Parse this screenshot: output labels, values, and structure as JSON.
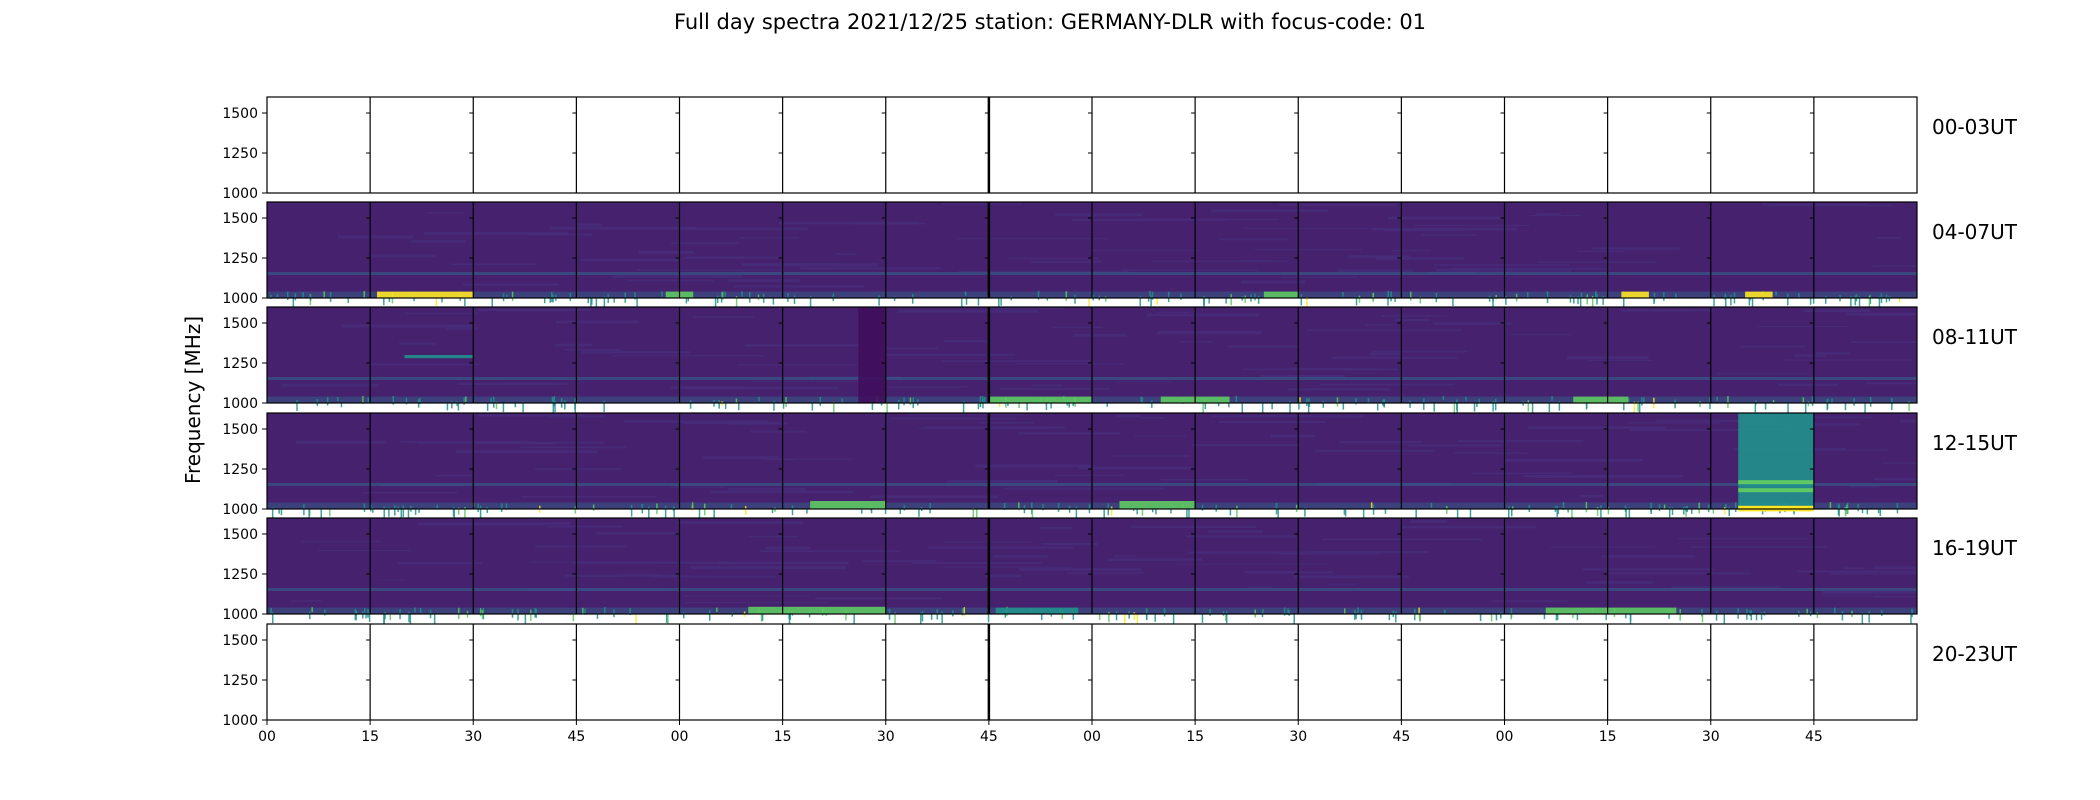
{
  "title": "Full day spectra 2021/12/25 station: GERMANY-DLR with focus-code: 01",
  "chart_data": {
    "type": "heatmap",
    "title": "Full day spectra 2021/12/25 station: GERMANY-DLR with focus-code: 01",
    "ylabel": "Frequency [MHz]",
    "xlabel": "",
    "ylim": [
      1000,
      1600
    ],
    "yticks": [
      1000,
      1250,
      1500
    ],
    "xtick_labels": [
      "00",
      "15",
      "30",
      "45",
      "00",
      "15",
      "30",
      "45",
      "00",
      "15",
      "30",
      "45",
      "00",
      "15",
      "30",
      "45"
    ],
    "colormap": "viridis",
    "colors": {
      "background": "#46226e",
      "faint": "#472d7b",
      "medium": "#31688e",
      "teal": "#21918c",
      "green": "#5ec962",
      "yellow": "#fde725"
    },
    "rows": [
      {
        "label": "00-03UT",
        "has_data": false,
        "bursts": []
      },
      {
        "label": "04-07UT",
        "has_data": true,
        "bursts": [
          {
            "start_min": 16,
            "end_min": 30,
            "freq_low": 1000,
            "freq_high": 1040,
            "level": "yellow"
          },
          {
            "start_min": 58,
            "end_min": 62,
            "freq_low": 1000,
            "freq_high": 1040,
            "level": "green"
          },
          {
            "start_min": 145,
            "end_min": 150,
            "freq_low": 1000,
            "freq_high": 1040,
            "level": "green"
          },
          {
            "start_min": 197,
            "end_min": 201,
            "freq_low": 1000,
            "freq_high": 1040,
            "level": "yellow"
          },
          {
            "start_min": 215,
            "end_min": 219,
            "freq_low": 1000,
            "freq_high": 1040,
            "level": "yellow"
          }
        ]
      },
      {
        "label": "08-11UT",
        "has_data": true,
        "bursts": [
          {
            "start_min": 20,
            "end_min": 30,
            "freq_low": 1280,
            "freq_high": 1300,
            "level": "teal"
          },
          {
            "start_min": 86,
            "end_min": 90,
            "freq_low": 1000,
            "freq_high": 1600,
            "level": "dark"
          },
          {
            "start_min": 105,
            "end_min": 120,
            "freq_low": 1000,
            "freq_high": 1040,
            "level": "green"
          },
          {
            "start_min": 130,
            "end_min": 140,
            "freq_low": 1000,
            "freq_high": 1040,
            "level": "green"
          },
          {
            "start_min": 190,
            "end_min": 198,
            "freq_low": 1000,
            "freq_high": 1040,
            "level": "green"
          }
        ]
      },
      {
        "label": "12-15UT",
        "has_data": true,
        "bursts": [
          {
            "start_min": 79,
            "end_min": 90,
            "freq_low": 1000,
            "freq_high": 1050,
            "level": "green"
          },
          {
            "start_min": 124,
            "end_min": 135,
            "freq_low": 1000,
            "freq_high": 1050,
            "level": "green"
          },
          {
            "start_min": 214,
            "end_min": 225,
            "freq_low": 1000,
            "freq_high": 1600,
            "level": "teal"
          }
        ]
      },
      {
        "label": "16-19UT",
        "has_data": true,
        "bursts": [
          {
            "start_min": 70,
            "end_min": 90,
            "freq_low": 1000,
            "freq_high": 1045,
            "level": "green"
          },
          {
            "start_min": 106,
            "end_min": 118,
            "freq_low": 1000,
            "freq_high": 1040,
            "level": "teal"
          },
          {
            "start_min": 186,
            "end_min": 205,
            "freq_low": 1000,
            "freq_high": 1040,
            "level": "green"
          }
        ]
      },
      {
        "label": "20-23UT",
        "has_data": false,
        "bursts": []
      }
    ]
  }
}
